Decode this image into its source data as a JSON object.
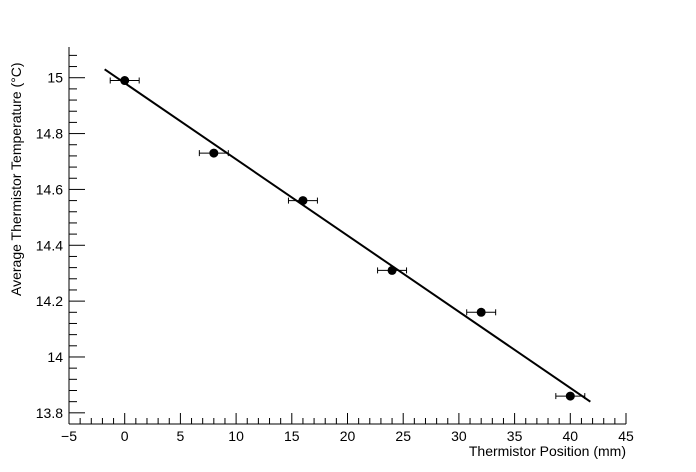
{
  "chart_data": {
    "type": "scatter",
    "title": "",
    "xlabel": "Thermistor Position (mm)",
    "ylabel": "Average Thermistor Temperature (°C)",
    "xlim": [
      -5,
      45
    ],
    "ylim": [
      13.76,
      15.11
    ],
    "x_major_ticks": [
      -5,
      0,
      5,
      10,
      15,
      20,
      25,
      30,
      35,
      40,
      45
    ],
    "y_major_ticks": [
      13.8,
      14,
      14.2,
      14.4,
      14.6,
      14.8,
      15
    ],
    "x_tick_labels": [
      "−5",
      "0",
      "5",
      "10",
      "15",
      "20",
      "25",
      "30",
      "35",
      "40",
      "45"
    ],
    "y_tick_labels": [
      "13.8",
      "14",
      "14.2",
      "14.4",
      "14.6",
      "14.8",
      "15"
    ],
    "grid": false,
    "series": [
      {
        "points": [
          {
            "x": 0,
            "y": 14.99,
            "xerr": 1.3,
            "yerr": 0.01
          },
          {
            "x": 8,
            "y": 14.73,
            "xerr": 1.3,
            "yerr": 0.01
          },
          {
            "x": 16,
            "y": 14.56,
            "xerr": 1.3,
            "yerr": 0.01
          },
          {
            "x": 24,
            "y": 14.31,
            "xerr": 1.3,
            "yerr": 0.01
          },
          {
            "x": 32,
            "y": 14.16,
            "xerr": 1.3,
            "yerr": 0.01
          },
          {
            "x": 40,
            "y": 13.86,
            "xerr": 1.3,
            "yerr": 0.01
          }
        ],
        "marker_color": "#000000"
      }
    ],
    "fit_line": {
      "x": [
        -1.8,
        41.8
      ],
      "y": [
        15.03,
        13.84
      ],
      "color": "#000000"
    }
  }
}
